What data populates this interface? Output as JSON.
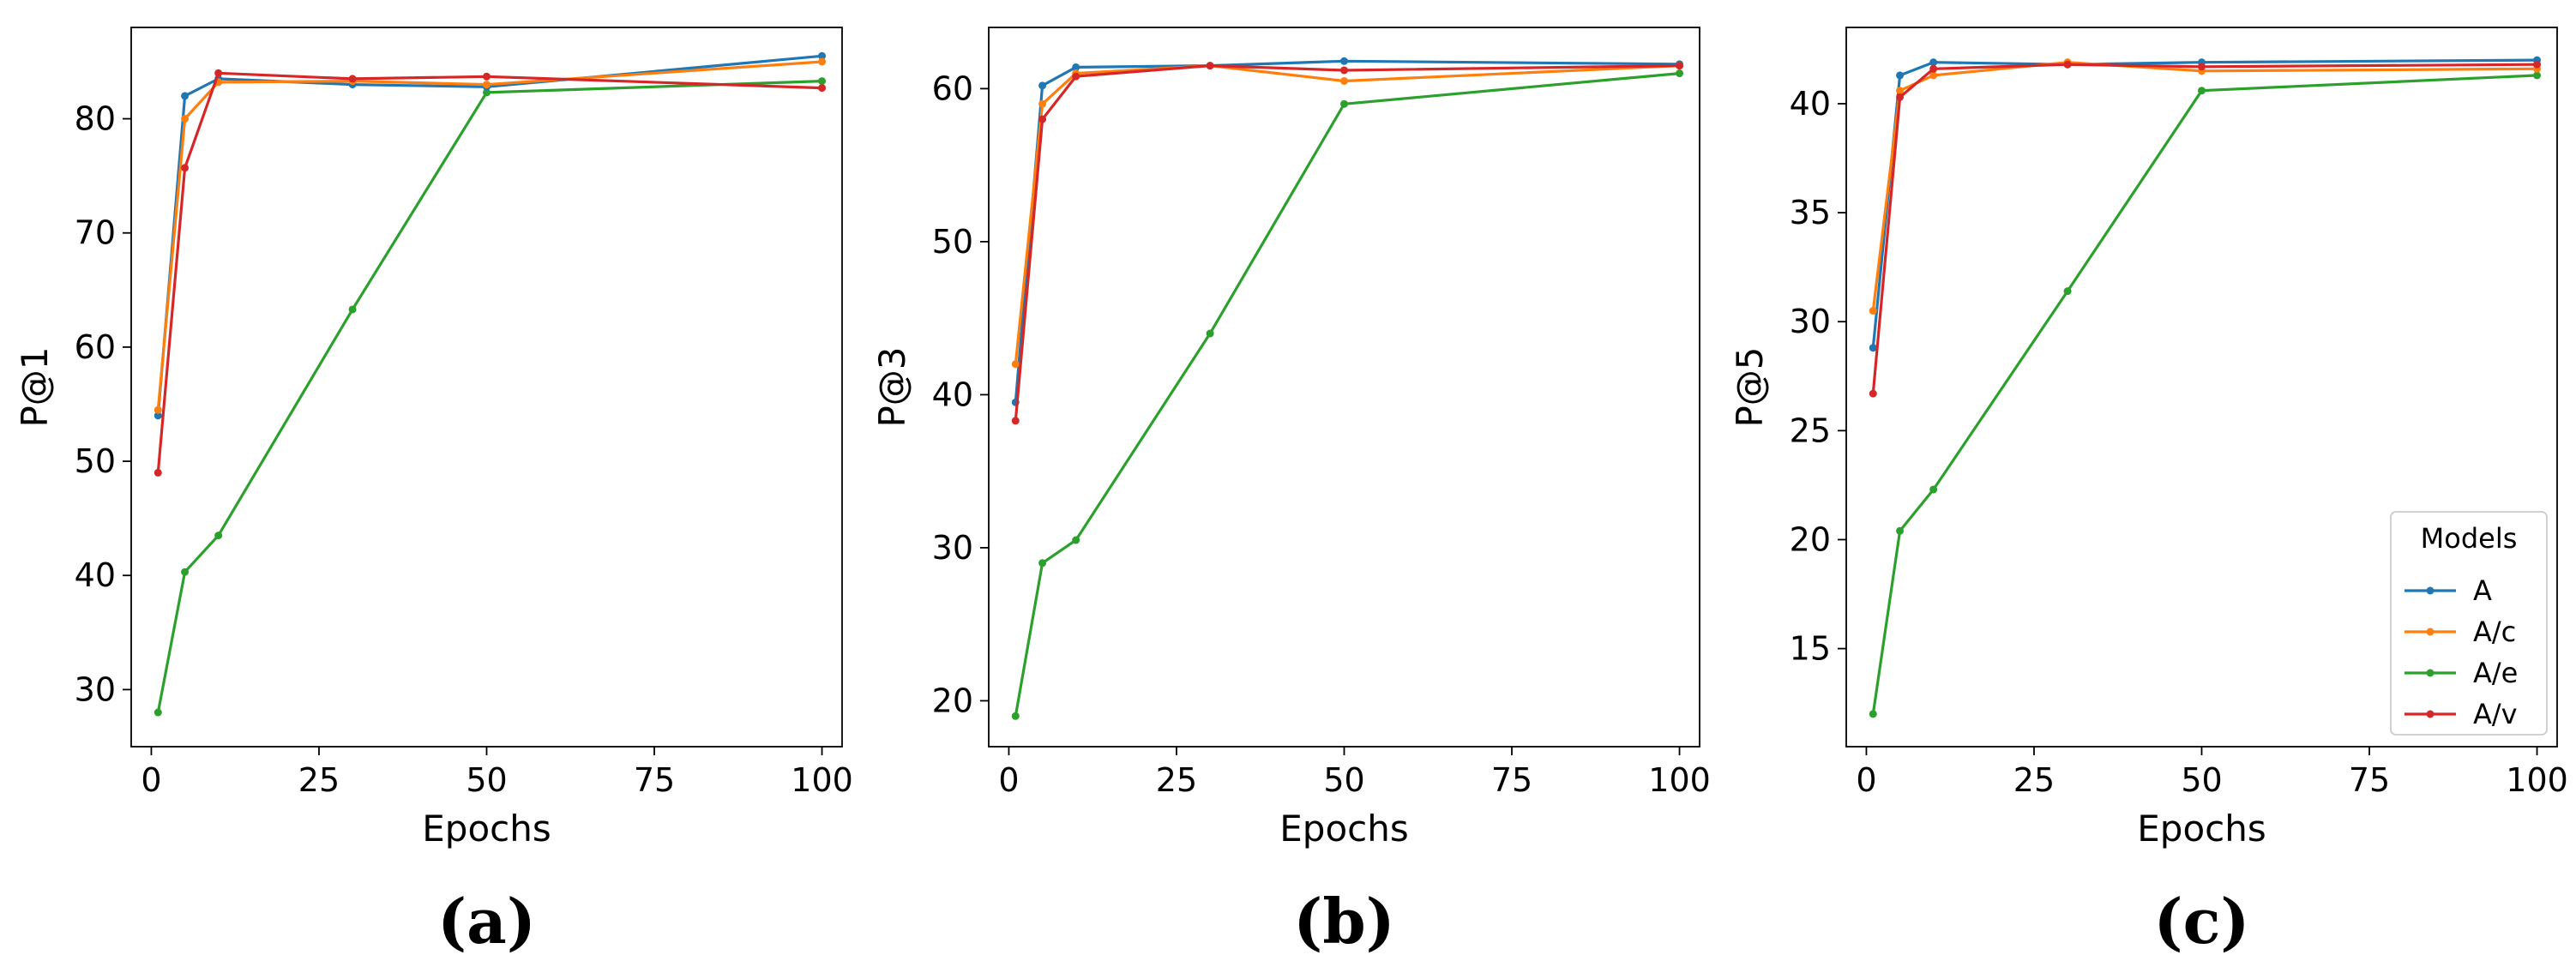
{
  "colors": {
    "A": "#1f77b4",
    "A/c": "#ff7f0e",
    "A/e": "#2ca02c",
    "A/v": "#d62728"
  },
  "legend": {
    "title": "Models",
    "entries": [
      "A",
      "A/c",
      "A/e",
      "A/v"
    ],
    "location": "lower-right of panel (c)"
  },
  "chart_data": [
    {
      "type": "line",
      "panel_label": "(a)",
      "xlabel": "Epochs",
      "ylabel": "P@1",
      "xlim": [
        -3,
        103
      ],
      "ylim": [
        25,
        88
      ],
      "xticks": [
        0,
        25,
        50,
        75,
        100
      ],
      "yticks": [
        30,
        40,
        50,
        60,
        70,
        80
      ],
      "x": [
        1,
        5,
        10,
        30,
        50,
        100
      ],
      "series": [
        {
          "name": "A",
          "values": [
            54.0,
            82.0,
            83.5,
            83.0,
            82.8,
            85.5
          ]
        },
        {
          "name": "A/c",
          "values": [
            54.5,
            80.0,
            83.2,
            83.3,
            83.0,
            85.0
          ]
        },
        {
          "name": "A/e",
          "values": [
            28.0,
            40.3,
            43.5,
            63.3,
            82.3,
            83.3
          ]
        },
        {
          "name": "A/v",
          "values": [
            49.0,
            75.7,
            84.0,
            83.5,
            83.7,
            82.7
          ]
        }
      ]
    },
    {
      "type": "line",
      "panel_label": "(b)",
      "xlabel": "Epochs",
      "ylabel": "P@3",
      "xlim": [
        -3,
        103
      ],
      "ylim": [
        17,
        64
      ],
      "xticks": [
        0,
        25,
        50,
        75,
        100
      ],
      "yticks": [
        20,
        30,
        40,
        50,
        60
      ],
      "x": [
        1,
        5,
        10,
        30,
        50,
        100
      ],
      "series": [
        {
          "name": "A",
          "values": [
            39.5,
            60.2,
            61.4,
            61.5,
            61.8,
            61.6
          ]
        },
        {
          "name": "A/c",
          "values": [
            42.0,
            59.0,
            61.0,
            61.5,
            60.5,
            61.5
          ]
        },
        {
          "name": "A/e",
          "values": [
            19.0,
            29.0,
            30.5,
            44.0,
            59.0,
            61.0
          ]
        },
        {
          "name": "A/v",
          "values": [
            38.3,
            58.0,
            60.8,
            61.5,
            61.2,
            61.5
          ]
        }
      ]
    },
    {
      "type": "line",
      "panel_label": "(c)",
      "xlabel": "Epochs",
      "ylabel": "P@5",
      "xlim": [
        -3,
        103
      ],
      "ylim": [
        10.5,
        43.5
      ],
      "xticks": [
        0,
        25,
        50,
        75,
        100
      ],
      "yticks": [
        15,
        20,
        25,
        30,
        35,
        40
      ],
      "x": [
        1,
        5,
        10,
        30,
        50,
        100
      ],
      "series": [
        {
          "name": "A",
          "values": [
            28.8,
            41.3,
            41.9,
            41.8,
            41.9,
            42.0
          ]
        },
        {
          "name": "A/c",
          "values": [
            30.5,
            40.6,
            41.3,
            41.9,
            41.5,
            41.6
          ]
        },
        {
          "name": "A/e",
          "values": [
            12.0,
            20.4,
            22.3,
            31.4,
            40.6,
            41.3
          ]
        },
        {
          "name": "A/v",
          "values": [
            26.7,
            40.3,
            41.6,
            41.8,
            41.7,
            41.8
          ]
        }
      ]
    }
  ]
}
